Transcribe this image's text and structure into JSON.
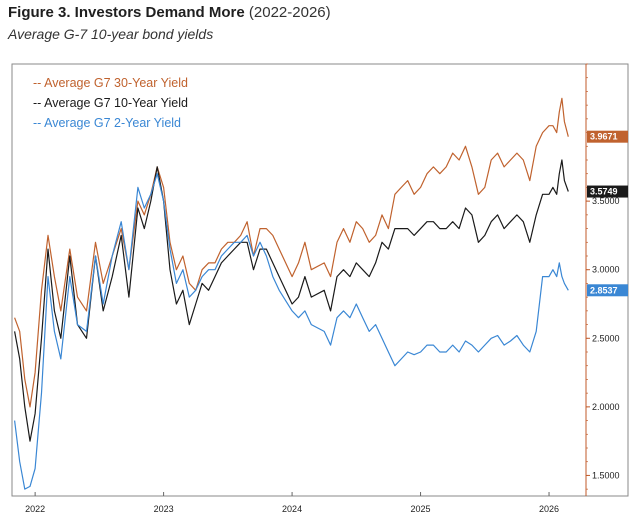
{
  "header": {
    "figure_label": "Figure 3. Investors Demand More",
    "figure_range": "(2022-2026)",
    "subtitle": "Average G-7 10-year bond yields"
  },
  "colors": {
    "background": "#ffffff",
    "frame": "#8a8a8a",
    "right_axis": "#c05a2a",
    "grid": "#e4e4e4"
  },
  "chart_data": {
    "type": "line",
    "x_unit": "year",
    "xlim": [
      2021.82,
      2026.28
    ],
    "ylim": [
      1.35,
      4.5
    ],
    "x_ticks": [
      {
        "value": 2022,
        "label": "2022"
      },
      {
        "value": 2023,
        "label": "2023"
      },
      {
        "value": 2024,
        "label": "2024"
      },
      {
        "value": 2025,
        "label": "2025"
      },
      {
        "value": 2026,
        "label": "2026"
      }
    ],
    "y_ticks": [
      {
        "value": 1.5,
        "label": "1.5000"
      },
      {
        "value": 2.0,
        "label": "2.0000"
      },
      {
        "value": 2.5,
        "label": "2.5000"
      },
      {
        "value": 3.0,
        "label": "3.0000"
      },
      {
        "value": 3.5,
        "label": "3.5000"
      }
    ],
    "y_axis_side": "right",
    "grid": false,
    "legend_position": "top-left",
    "legend_prefix": "--",
    "series": [
      {
        "name": "Average G7 30-Year Yield",
        "color": "#c0622e",
        "last_value_label": "3.9671",
        "points": [
          [
            2021.84,
            2.65
          ],
          [
            2021.88,
            2.55
          ],
          [
            2021.92,
            2.2
          ],
          [
            2021.96,
            2.0
          ],
          [
            2022.0,
            2.25
          ],
          [
            2022.05,
            2.85
          ],
          [
            2022.1,
            3.25
          ],
          [
            2022.15,
            2.95
          ],
          [
            2022.2,
            2.7
          ],
          [
            2022.27,
            3.15
          ],
          [
            2022.33,
            2.8
          ],
          [
            2022.4,
            2.7
          ],
          [
            2022.47,
            3.2
          ],
          [
            2022.53,
            2.9
          ],
          [
            2022.6,
            3.1
          ],
          [
            2022.67,
            3.3
          ],
          [
            2022.73,
            3.0
          ],
          [
            2022.8,
            3.5
          ],
          [
            2022.85,
            3.4
          ],
          [
            2022.9,
            3.55
          ],
          [
            2022.95,
            3.75
          ],
          [
            2023.0,
            3.6
          ],
          [
            2023.05,
            3.2
          ],
          [
            2023.1,
            3.0
          ],
          [
            2023.15,
            3.1
          ],
          [
            2023.2,
            2.9
          ],
          [
            2023.25,
            2.85
          ],
          [
            2023.3,
            3.0
          ],
          [
            2023.35,
            3.05
          ],
          [
            2023.4,
            3.05
          ],
          [
            2023.45,
            3.15
          ],
          [
            2023.5,
            3.2
          ],
          [
            2023.55,
            3.2
          ],
          [
            2023.6,
            3.25
          ],
          [
            2023.65,
            3.35
          ],
          [
            2023.7,
            3.1
          ],
          [
            2023.75,
            3.3
          ],
          [
            2023.8,
            3.3
          ],
          [
            2023.85,
            3.25
          ],
          [
            2023.9,
            3.15
          ],
          [
            2024.0,
            2.95
          ],
          [
            2024.05,
            3.05
          ],
          [
            2024.1,
            3.2
          ],
          [
            2024.15,
            3.0
          ],
          [
            2024.25,
            3.05
          ],
          [
            2024.3,
            2.95
          ],
          [
            2024.35,
            3.2
          ],
          [
            2024.4,
            3.3
          ],
          [
            2024.45,
            3.2
          ],
          [
            2024.5,
            3.35
          ],
          [
            2024.55,
            3.3
          ],
          [
            2024.6,
            3.2
          ],
          [
            2024.65,
            3.25
          ],
          [
            2024.7,
            3.4
          ],
          [
            2024.75,
            3.3
          ],
          [
            2024.8,
            3.55
          ],
          [
            2024.85,
            3.6
          ],
          [
            2024.9,
            3.65
          ],
          [
            2024.95,
            3.55
          ],
          [
            2025.0,
            3.6
          ],
          [
            2025.05,
            3.7
          ],
          [
            2025.1,
            3.75
          ],
          [
            2025.15,
            3.7
          ],
          [
            2025.2,
            3.75
          ],
          [
            2025.25,
            3.85
          ],
          [
            2025.3,
            3.8
          ],
          [
            2025.35,
            3.9
          ],
          [
            2025.4,
            3.75
          ],
          [
            2025.45,
            3.55
          ],
          [
            2025.5,
            3.6
          ],
          [
            2025.55,
            3.8
          ],
          [
            2025.6,
            3.85
          ],
          [
            2025.65,
            3.75
          ],
          [
            2025.7,
            3.8
          ],
          [
            2025.75,
            3.85
          ],
          [
            2025.8,
            3.8
          ],
          [
            2025.85,
            3.65
          ],
          [
            2025.9,
            3.9
          ],
          [
            2025.95,
            4.0
          ],
          [
            2026.0,
            4.05
          ],
          [
            2026.03,
            4.05
          ],
          [
            2026.06,
            4.0
          ],
          [
            2026.08,
            4.15
          ],
          [
            2026.1,
            4.25
          ],
          [
            2026.12,
            4.08
          ],
          [
            2026.15,
            3.97
          ]
        ]
      },
      {
        "name": "Average G7 10-Year Yield",
        "color": "#1a1a1a",
        "last_value_label": "3.5749",
        "points": [
          [
            2021.84,
            2.55
          ],
          [
            2021.88,
            2.35
          ],
          [
            2021.92,
            2.0
          ],
          [
            2021.96,
            1.75
          ],
          [
            2022.0,
            1.95
          ],
          [
            2022.05,
            2.5
          ],
          [
            2022.1,
            3.15
          ],
          [
            2022.15,
            2.7
          ],
          [
            2022.2,
            2.5
          ],
          [
            2022.27,
            3.1
          ],
          [
            2022.33,
            2.6
          ],
          [
            2022.4,
            2.5
          ],
          [
            2022.47,
            3.1
          ],
          [
            2022.53,
            2.7
          ],
          [
            2022.6,
            2.95
          ],
          [
            2022.67,
            3.25
          ],
          [
            2022.73,
            2.8
          ],
          [
            2022.8,
            3.45
          ],
          [
            2022.85,
            3.3
          ],
          [
            2022.9,
            3.5
          ],
          [
            2022.95,
            3.75
          ],
          [
            2023.0,
            3.5
          ],
          [
            2023.05,
            3.0
          ],
          [
            2023.1,
            2.75
          ],
          [
            2023.15,
            2.85
          ],
          [
            2023.2,
            2.6
          ],
          [
            2023.25,
            2.75
          ],
          [
            2023.3,
            2.9
          ],
          [
            2023.35,
            2.85
          ],
          [
            2023.4,
            2.95
          ],
          [
            2023.45,
            3.05
          ],
          [
            2023.5,
            3.1
          ],
          [
            2023.55,
            3.15
          ],
          [
            2023.6,
            3.2
          ],
          [
            2023.65,
            3.2
          ],
          [
            2023.7,
            3.0
          ],
          [
            2023.75,
            3.15
          ],
          [
            2023.8,
            3.15
          ],
          [
            2023.85,
            3.05
          ],
          [
            2023.9,
            2.95
          ],
          [
            2024.0,
            2.75
          ],
          [
            2024.05,
            2.8
          ],
          [
            2024.1,
            2.95
          ],
          [
            2024.15,
            2.8
          ],
          [
            2024.25,
            2.85
          ],
          [
            2024.3,
            2.7
          ],
          [
            2024.35,
            2.95
          ],
          [
            2024.4,
            3.0
          ],
          [
            2024.45,
            2.95
          ],
          [
            2024.5,
            3.05
          ],
          [
            2024.55,
            3.0
          ],
          [
            2024.6,
            2.95
          ],
          [
            2024.65,
            3.05
          ],
          [
            2024.7,
            3.2
          ],
          [
            2024.75,
            3.15
          ],
          [
            2024.8,
            3.3
          ],
          [
            2024.85,
            3.3
          ],
          [
            2024.9,
            3.3
          ],
          [
            2024.95,
            3.25
          ],
          [
            2025.0,
            3.3
          ],
          [
            2025.05,
            3.35
          ],
          [
            2025.1,
            3.35
          ],
          [
            2025.15,
            3.3
          ],
          [
            2025.2,
            3.3
          ],
          [
            2025.25,
            3.35
          ],
          [
            2025.3,
            3.3
          ],
          [
            2025.35,
            3.45
          ],
          [
            2025.4,
            3.4
          ],
          [
            2025.45,
            3.2
          ],
          [
            2025.5,
            3.25
          ],
          [
            2025.55,
            3.35
          ],
          [
            2025.6,
            3.4
          ],
          [
            2025.65,
            3.3
          ],
          [
            2025.7,
            3.35
          ],
          [
            2025.75,
            3.4
          ],
          [
            2025.8,
            3.35
          ],
          [
            2025.85,
            3.2
          ],
          [
            2025.9,
            3.4
          ],
          [
            2025.95,
            3.55
          ],
          [
            2026.0,
            3.55
          ],
          [
            2026.03,
            3.6
          ],
          [
            2026.06,
            3.55
          ],
          [
            2026.08,
            3.7
          ],
          [
            2026.1,
            3.8
          ],
          [
            2026.12,
            3.65
          ],
          [
            2026.15,
            3.57
          ]
        ]
      },
      {
        "name": "Average G7 2-Year Yield",
        "color": "#3a87d4",
        "last_value_label": "2.8537",
        "points": [
          [
            2021.84,
            1.9
          ],
          [
            2021.88,
            1.6
          ],
          [
            2021.92,
            1.4
          ],
          [
            2021.96,
            1.42
          ],
          [
            2022.0,
            1.55
          ],
          [
            2022.05,
            2.1
          ],
          [
            2022.1,
            2.95
          ],
          [
            2022.15,
            2.55
          ],
          [
            2022.2,
            2.35
          ],
          [
            2022.27,
            2.95
          ],
          [
            2022.33,
            2.6
          ],
          [
            2022.4,
            2.55
          ],
          [
            2022.47,
            3.1
          ],
          [
            2022.53,
            2.75
          ],
          [
            2022.6,
            3.1
          ],
          [
            2022.67,
            3.35
          ],
          [
            2022.73,
            3.0
          ],
          [
            2022.8,
            3.6
          ],
          [
            2022.85,
            3.45
          ],
          [
            2022.9,
            3.55
          ],
          [
            2022.95,
            3.7
          ],
          [
            2023.0,
            3.5
          ],
          [
            2023.05,
            3.15
          ],
          [
            2023.1,
            2.9
          ],
          [
            2023.15,
            3.0
          ],
          [
            2023.2,
            2.8
          ],
          [
            2023.25,
            2.85
          ],
          [
            2023.3,
            2.95
          ],
          [
            2023.35,
            3.0
          ],
          [
            2023.4,
            3.0
          ],
          [
            2023.45,
            3.1
          ],
          [
            2023.5,
            3.15
          ],
          [
            2023.55,
            3.2
          ],
          [
            2023.6,
            3.2
          ],
          [
            2023.65,
            3.25
          ],
          [
            2023.7,
            3.1
          ],
          [
            2023.75,
            3.2
          ],
          [
            2023.8,
            3.1
          ],
          [
            2023.85,
            2.95
          ],
          [
            2023.9,
            2.85
          ],
          [
            2024.0,
            2.7
          ],
          [
            2024.05,
            2.65
          ],
          [
            2024.1,
            2.7
          ],
          [
            2024.15,
            2.6
          ],
          [
            2024.25,
            2.55
          ],
          [
            2024.3,
            2.45
          ],
          [
            2024.35,
            2.65
          ],
          [
            2024.4,
            2.7
          ],
          [
            2024.45,
            2.65
          ],
          [
            2024.5,
            2.75
          ],
          [
            2024.55,
            2.65
          ],
          [
            2024.6,
            2.55
          ],
          [
            2024.65,
            2.6
          ],
          [
            2024.7,
            2.5
          ],
          [
            2024.75,
            2.4
          ],
          [
            2024.8,
            2.3
          ],
          [
            2024.85,
            2.35
          ],
          [
            2024.9,
            2.4
          ],
          [
            2024.95,
            2.38
          ],
          [
            2025.0,
            2.4
          ],
          [
            2025.05,
            2.45
          ],
          [
            2025.1,
            2.45
          ],
          [
            2025.15,
            2.4
          ],
          [
            2025.2,
            2.4
          ],
          [
            2025.25,
            2.45
          ],
          [
            2025.3,
            2.4
          ],
          [
            2025.35,
            2.48
          ],
          [
            2025.4,
            2.45
          ],
          [
            2025.45,
            2.4
          ],
          [
            2025.5,
            2.45
          ],
          [
            2025.55,
            2.5
          ],
          [
            2025.6,
            2.52
          ],
          [
            2025.65,
            2.45
          ],
          [
            2025.7,
            2.48
          ],
          [
            2025.75,
            2.52
          ],
          [
            2025.8,
            2.45
          ],
          [
            2025.85,
            2.4
          ],
          [
            2025.9,
            2.55
          ],
          [
            2025.95,
            2.95
          ],
          [
            2026.0,
            2.95
          ],
          [
            2026.03,
            3.0
          ],
          [
            2026.06,
            2.95
          ],
          [
            2026.08,
            3.05
          ],
          [
            2026.1,
            2.95
          ],
          [
            2026.12,
            2.9
          ],
          [
            2026.15,
            2.85
          ]
        ]
      }
    ]
  }
}
